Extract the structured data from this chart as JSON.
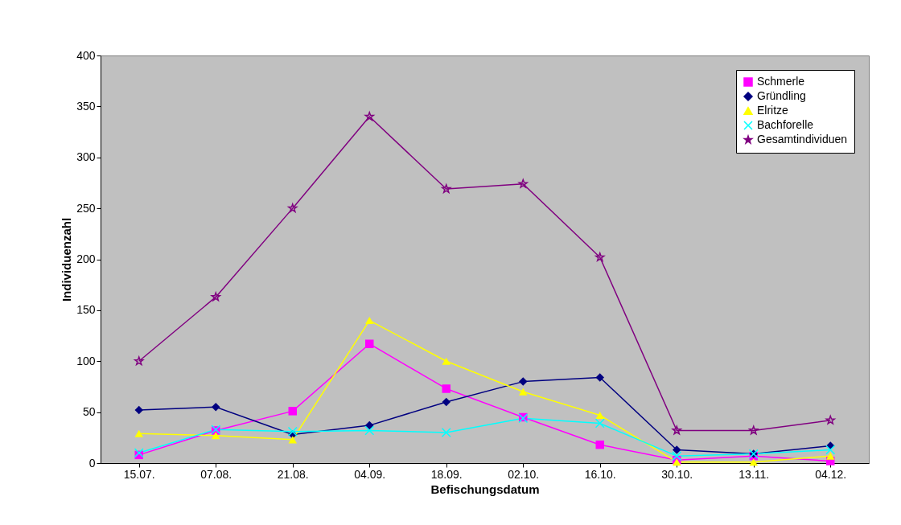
{
  "chart_data": {
    "type": "line",
    "xlabel": "Befischungsdatum",
    "ylabel": "Individuenzahl",
    "categories": [
      "15.07.",
      "07.08.",
      "21.08.",
      "04.09.",
      "18.09.",
      "02.10.",
      "16.10.",
      "30.10.",
      "13.11.",
      "04.12."
    ],
    "ylim": [
      0,
      400
    ],
    "yticks": [
      0,
      50,
      100,
      150,
      200,
      250,
      300,
      350,
      400
    ],
    "grid": false,
    "legend": "top right",
    "series": [
      {
        "name": "Schmerle",
        "color": "#ff00ff",
        "marker": "square",
        "values": [
          8,
          32,
          51,
          117,
          73,
          45,
          18,
          3,
          7,
          2
        ]
      },
      {
        "name": "Gründling",
        "color": "#000080",
        "marker": "diamond",
        "values": [
          52,
          55,
          28,
          37,
          60,
          80,
          84,
          13,
          9,
          17
        ]
      },
      {
        "name": "Elritze",
        "color": "#ffff00",
        "marker": "triangle",
        "values": [
          29,
          27,
          23,
          140,
          100,
          70,
          47,
          1,
          1,
          7
        ]
      },
      {
        "name": "Bachforelle",
        "color": "#00ffff",
        "marker": "cross",
        "values": [
          10,
          33,
          31,
          32,
          30,
          44,
          39,
          7,
          9,
          13
        ]
      },
      {
        "name": "Gesamtindividuen",
        "color": "#800080",
        "marker": "star",
        "values": [
          100,
          163,
          250,
          340,
          269,
          274,
          202,
          32,
          32,
          42
        ]
      }
    ]
  }
}
